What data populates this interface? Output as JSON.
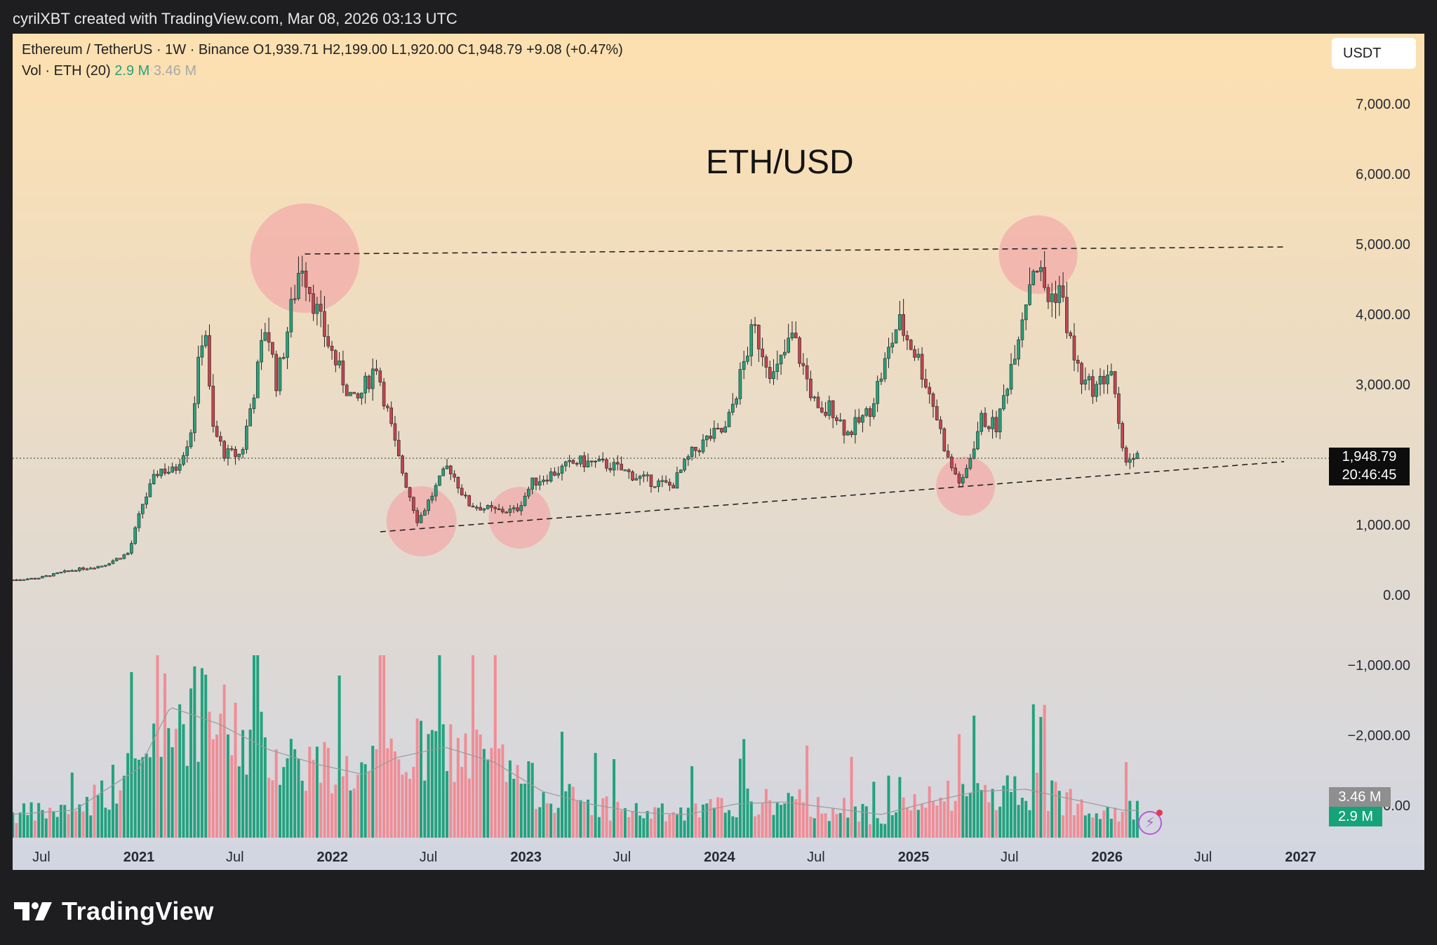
{
  "header": {
    "credit": "cyrilXBT created with TradingView.com, Mar 08, 2026 03:13 UTC"
  },
  "footer": {
    "brand": "TradingView"
  },
  "legend": {
    "symbol_line": "Ethereum / TetherUS · 1W · Binance  O1,939.71  H2,199.00  L1,920.00  C1,948.79  +9.08 (+0.47%)",
    "vol_label": "Vol · ETH (20)",
    "vol_value": "2.9 M",
    "vol_ma": "3.46 M"
  },
  "unit": "USDT",
  "overlay": {
    "price_label": "1,948.79",
    "countdown": "20:46:45",
    "vol_ma_label": "3.46 M",
    "vol_label": "2.9 M"
  },
  "colors": {
    "up": "#26a17b",
    "down": "#c2454f",
    "vol_up": "#22a27e",
    "vol_down": "#ef8d96",
    "circle": "#f2a8a8",
    "bg_top": "#fde0b0",
    "bg_bottom": "#d2d6e2"
  },
  "chart_data": {
    "type": "candlestick",
    "title": "ETH/USD",
    "y_ticks": [
      "7,000.00",
      "6,000.00",
      "5,000.00",
      "4,000.00",
      "3,000.00",
      "1,000.00",
      "0.00",
      "−1,000.00",
      "−2,000.00",
      "−3,000.00"
    ],
    "x_ticks": [
      "Jul",
      "2021",
      "Jul",
      "2022",
      "Jul",
      "2023",
      "Jul",
      "2024",
      "Jul",
      "2025",
      "Jul",
      "2026",
      "Jul",
      "2027"
    ],
    "ylim": [
      -3400,
      7500
    ],
    "last_price": 1948.79,
    "price_path_dates": [
      "2020-05",
      "2020-07",
      "2020-09",
      "2020-11",
      "2020-12-20",
      "2021-01-15",
      "2021-02-15",
      "2021-03-15",
      "2021-04-15",
      "2021-05-12",
      "2021-05-25",
      "2021-06-20",
      "2021-07-20",
      "2021-08-20",
      "2021-09-05",
      "2021-09-25",
      "2021-11-10",
      "2021-12-15",
      "2022-01-20",
      "2022-02-20",
      "2022-04-01",
      "2022-05-10",
      "2022-06-18",
      "2022-07-20",
      "2022-08-15",
      "2022-09-20",
      "2022-11-10",
      "2022-12-20",
      "2023-01-20",
      "2023-04-15",
      "2023-06-15",
      "2023-08-15",
      "2023-10-10",
      "2023-11-15",
      "2023-12-20",
      "2024-01-20",
      "2024-03-12",
      "2024-04-20",
      "2024-05-25",
      "2024-07-15",
      "2024-08-05",
      "2024-09-05",
      "2024-10-15",
      "2024-11-15",
      "2024-12-10",
      "2025-01-15",
      "2025-02-15",
      "2025-03-15",
      "2025-04-09",
      "2025-05-15",
      "2025-06-15",
      "2025-07-20",
      "2025-08-24",
      "2025-09-20",
      "2025-10-10",
      "2025-11-05",
      "2025-11-25",
      "2025-12-20",
      "2026-01-15",
      "2026-02-05",
      "2026-03-01"
    ],
    "price_path_values": [
      210,
      240,
      350,
      420,
      600,
      1300,
      1800,
      1750,
      2300,
      4000,
      2400,
      2000,
      2000,
      3200,
      3900,
      3000,
      4800,
      3900,
      3200,
      2700,
      3300,
      2000,
      1050,
      1500,
      1850,
      1300,
      1200,
      1200,
      1600,
      1900,
      1850,
      1650,
      1550,
      2000,
      2250,
      2350,
      3800,
      3100,
      3700,
      2500,
      2700,
      2300,
      2600,
      3300,
      3900,
      3400,
      2700,
      1900,
      1550,
      2500,
      2400,
      3600,
      4800,
      4200,
      4400,
      3400,
      3000,
      2950,
      3250,
      2000,
      1950
    ],
    "resistance_line": {
      "from": [
        "2021-11-10",
        4860
      ],
      "to": [
        "2026-12-01",
        4960
      ]
    },
    "support_line": {
      "from": [
        "2022-04-01",
        900
      ],
      "to": [
        "2026-12-01",
        1900
      ]
    },
    "highlight_dates": [
      "2021-11-10",
      "2022-06-18",
      "2022-12-20",
      "2025-04-09",
      "2025-08-24"
    ],
    "highlight_values": [
      4800,
      1050,
      1100,
      1550,
      4850
    ],
    "volume_ma_dates": [
      "2020-05",
      "2020-09",
      "2021-01",
      "2021-03",
      "2021-06",
      "2021-09",
      "2021-12",
      "2022-03",
      "2022-05",
      "2022-08",
      "2022-11",
      "2023-02",
      "2023-05",
      "2023-08",
      "2023-11",
      "2024-02",
      "2024-05",
      "2024-08",
      "2024-11",
      "2025-02",
      "2025-05",
      "2025-08",
      "2025-11",
      "2026-02"
    ],
    "volume_ma_values": [
      1.1,
      1.3,
      3.3,
      6.2,
      5.4,
      4.2,
      3.5,
      3.0,
      3.8,
      4.3,
      3.6,
      2.2,
      1.6,
      1.2,
      1.1,
      1.6,
      1.7,
      1.4,
      1.1,
      1.7,
      2.2,
      2.3,
      1.8,
      1.3
    ]
  }
}
